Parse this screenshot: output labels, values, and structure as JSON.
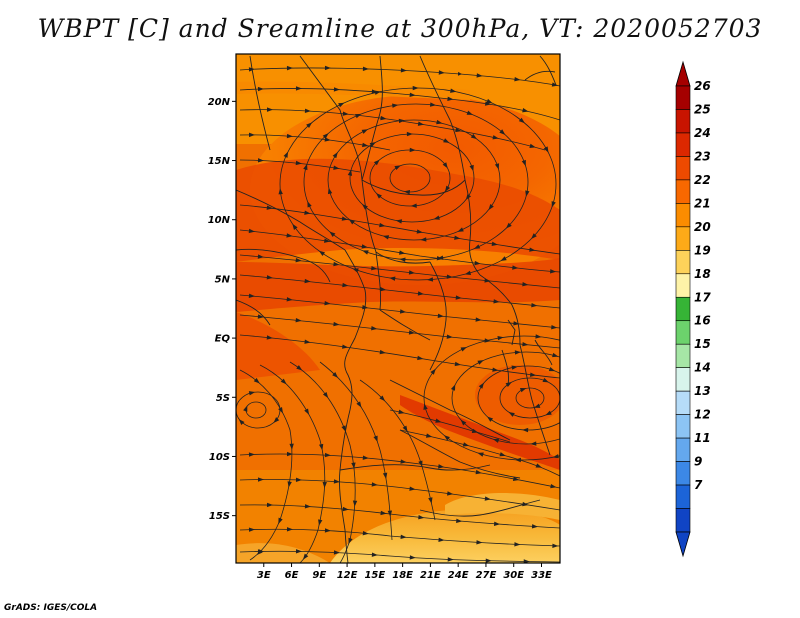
{
  "title": "WBPT [C] and Sreamline at 300hPa, VT: 2020052703",
  "credit": "GrADS: IGES/COLA",
  "map": {
    "lat_range": [
      -19,
      24
    ],
    "lon_range": [
      0,
      35
    ],
    "lat_ticks": [
      {
        "value": 20,
        "label": "20N"
      },
      {
        "value": 15,
        "label": "15N"
      },
      {
        "value": 10,
        "label": "10N"
      },
      {
        "value": 5,
        "label": "5N"
      },
      {
        "value": 0,
        "label": "EQ"
      },
      {
        "value": -5,
        "label": "5S"
      },
      {
        "value": -10,
        "label": "10S"
      },
      {
        "value": -15,
        "label": "15S"
      }
    ],
    "lon_ticks": [
      {
        "value": 3,
        "label": "3E"
      },
      {
        "value": 6,
        "label": "6E"
      },
      {
        "value": 9,
        "label": "9E"
      },
      {
        "value": 12,
        "label": "12E"
      },
      {
        "value": 15,
        "label": "15E"
      },
      {
        "value": 18,
        "label": "18E"
      },
      {
        "value": 21,
        "label": "21E"
      },
      {
        "value": 24,
        "label": "24E"
      },
      {
        "value": 27,
        "label": "27E"
      },
      {
        "value": 30,
        "label": "30E"
      },
      {
        "value": 33,
        "label": "33E"
      }
    ]
  },
  "colorbar": {
    "labels": [
      "26",
      "25",
      "24",
      "23",
      "22",
      "21",
      "20",
      "19",
      "18",
      "17",
      "16",
      "15",
      "14",
      "13",
      "12",
      "11",
      "9",
      "7"
    ],
    "colors": [
      "#a50000",
      "#c81400",
      "#dc2800",
      "#ee4a00",
      "#f86800",
      "#fb8c00",
      "#fdaa18",
      "#fdd25a",
      "#fef3a8",
      "#36b436",
      "#6cd26c",
      "#a6e6a6",
      "#d8f4ec",
      "#b6dcf8",
      "#8cc4f4",
      "#64a8ee",
      "#3c88e6",
      "#1c64d8",
      "#1044c4"
    ]
  }
}
